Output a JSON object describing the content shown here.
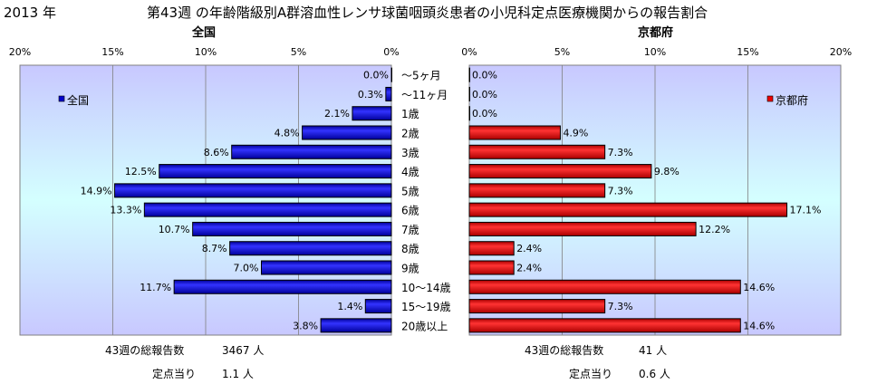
{
  "header": {
    "year": "2013 年",
    "title": "第43週 の年齢階級別A群溶血性レンサ球菌咽頭炎患者の小児科定点医療機関からの報告割合"
  },
  "colors": {
    "national_bar": "#0000cc",
    "kyoto_bar": "#ee0000",
    "plot_bg_edge": "#c8c8ff",
    "plot_bg_center": "#d4ffff"
  },
  "chart_data": [
    {
      "type": "bar",
      "orientation": "horizontal",
      "direction": "right-to-left",
      "title": "全国",
      "legend": "全国",
      "legend_position": "top-left",
      "xlim": [
        0,
        20
      ],
      "xticks": [
        "20%",
        "15%",
        "10%",
        "5%",
        "0%"
      ],
      "tick_values": [
        20,
        15,
        10,
        5,
        0
      ],
      "categories": [
        "～5ヶ月",
        "～11ヶ月",
        "1歳",
        "2歳",
        "3歳",
        "4歳",
        "5歳",
        "6歳",
        "7歳",
        "8歳",
        "9歳",
        "10～14歳",
        "15～19歳",
        "20歳以上"
      ],
      "values": [
        0.0,
        0.3,
        2.1,
        4.8,
        8.6,
        12.5,
        14.9,
        13.3,
        10.7,
        8.7,
        7.0,
        11.7,
        1.4,
        3.8
      ],
      "labels": [
        "0.0%",
        "0.3%",
        "2.1%",
        "4.8%",
        "8.6%",
        "12.5%",
        "14.9%",
        "13.3%",
        "10.7%",
        "8.7%",
        "7.0%",
        "11.7%",
        "1.4%",
        "3.8%"
      ],
      "grid": true
    },
    {
      "type": "bar",
      "orientation": "horizontal",
      "direction": "left-to-right",
      "title": "京都府",
      "legend": "京都府",
      "legend_position": "top-right",
      "xlim": [
        0,
        20
      ],
      "xticks": [
        "0%",
        "5%",
        "10%",
        "15%",
        "20%"
      ],
      "tick_values": [
        0,
        5,
        10,
        15,
        20
      ],
      "categories": [
        "～5ヶ月",
        "～11ヶ月",
        "1歳",
        "2歳",
        "3歳",
        "4歳",
        "5歳",
        "6歳",
        "7歳",
        "8歳",
        "9歳",
        "10～14歳",
        "15～19歳",
        "20歳以上"
      ],
      "values": [
        0.0,
        0.0,
        0.0,
        4.9,
        7.3,
        9.8,
        7.3,
        17.1,
        12.2,
        2.4,
        2.4,
        14.6,
        7.3,
        14.6
      ],
      "labels": [
        "0.0%",
        "0.0%",
        "0.0%",
        "4.9%",
        "7.3%",
        "9.8%",
        "7.3%",
        "17.1%",
        "12.2%",
        "2.4%",
        "2.4%",
        "14.6%",
        "7.3%",
        "14.6%"
      ],
      "grid": true
    }
  ],
  "footer": {
    "national": {
      "total_label": "43週の総報告数",
      "total_value": "3467 人",
      "per_site_label": "定点当り",
      "per_site_value": "1.1 人"
    },
    "kyoto": {
      "total_label": "43週の総報告数",
      "total_value": "41 人",
      "per_site_label": "定点当り",
      "per_site_value": "0.6 人"
    }
  }
}
